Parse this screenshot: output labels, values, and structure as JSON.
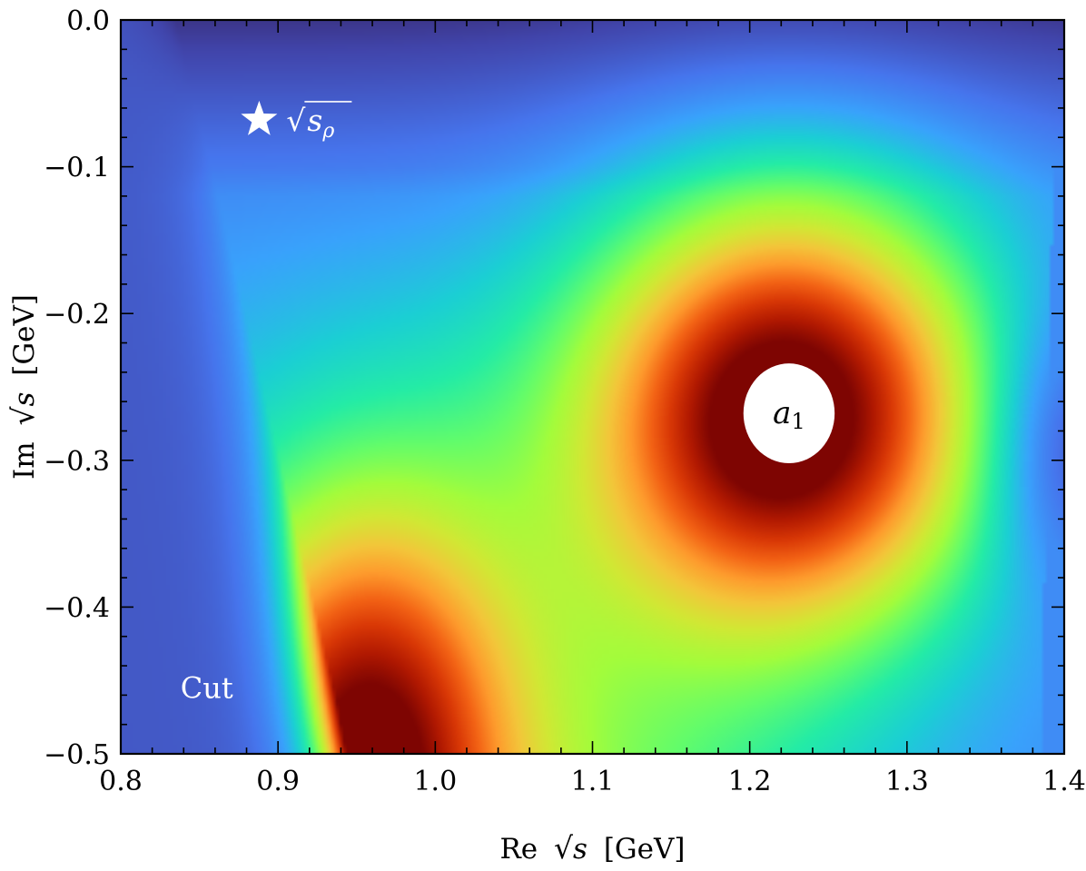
{
  "chart_data": {
    "type": "heatmap",
    "title": "",
    "xlabel": {
      "prefix": "Re",
      "radicand": "s",
      "unit": "[GeV]"
    },
    "ylabel": {
      "prefix": "Im",
      "radicand": "s",
      "unit": "[GeV]"
    },
    "xlim": [
      0.8,
      1.4
    ],
    "ylim": [
      -0.5,
      0.0
    ],
    "x_ticks": [
      0.8,
      0.9,
      1.0,
      1.1,
      1.2,
      1.3,
      1.4
    ],
    "x_tick_labels": [
      "0.8",
      "0.9",
      "1.0",
      "1.1",
      "1.2",
      "1.3",
      "1.4"
    ],
    "y_ticks": [
      0.0,
      -0.1,
      -0.2,
      -0.3,
      -0.4,
      -0.5
    ],
    "y_tick_labels": [
      "0.0",
      "−0.1",
      "−0.2",
      "−0.3",
      "−0.4",
      "−0.5"
    ],
    "minor_tick_step_x": 0.02,
    "minor_tick_step_y": 0.02,
    "grid": false,
    "colormap": "turbo",
    "colormap_stops": [
      "#30123b",
      "#4145ab",
      "#4675ed",
      "#39a2fc",
      "#1bcfd4",
      "#24eca6",
      "#61fc6c",
      "#a4fc3b",
      "#d1e834",
      "#f3c63a",
      "#fe9b2d",
      "#f36315",
      "#d93806",
      "#b11901",
      "#7a0402"
    ],
    "annotations": [
      {
        "id": "rho",
        "marker": "star",
        "label_radicand": "s",
        "label_subscript": "ρ",
        "x": 0.888,
        "y": -0.068,
        "color": "#ffffff"
      },
      {
        "id": "a1",
        "label_main": "a",
        "label_subscript": "1",
        "x": 1.225,
        "y": -0.268,
        "radius_re": 0.029,
        "radius_im": 0.034,
        "color": "#000000"
      },
      {
        "id": "cut",
        "label": "Cut",
        "x": 0.838,
        "y": -0.455,
        "color": "#ffffff"
      }
    ]
  }
}
